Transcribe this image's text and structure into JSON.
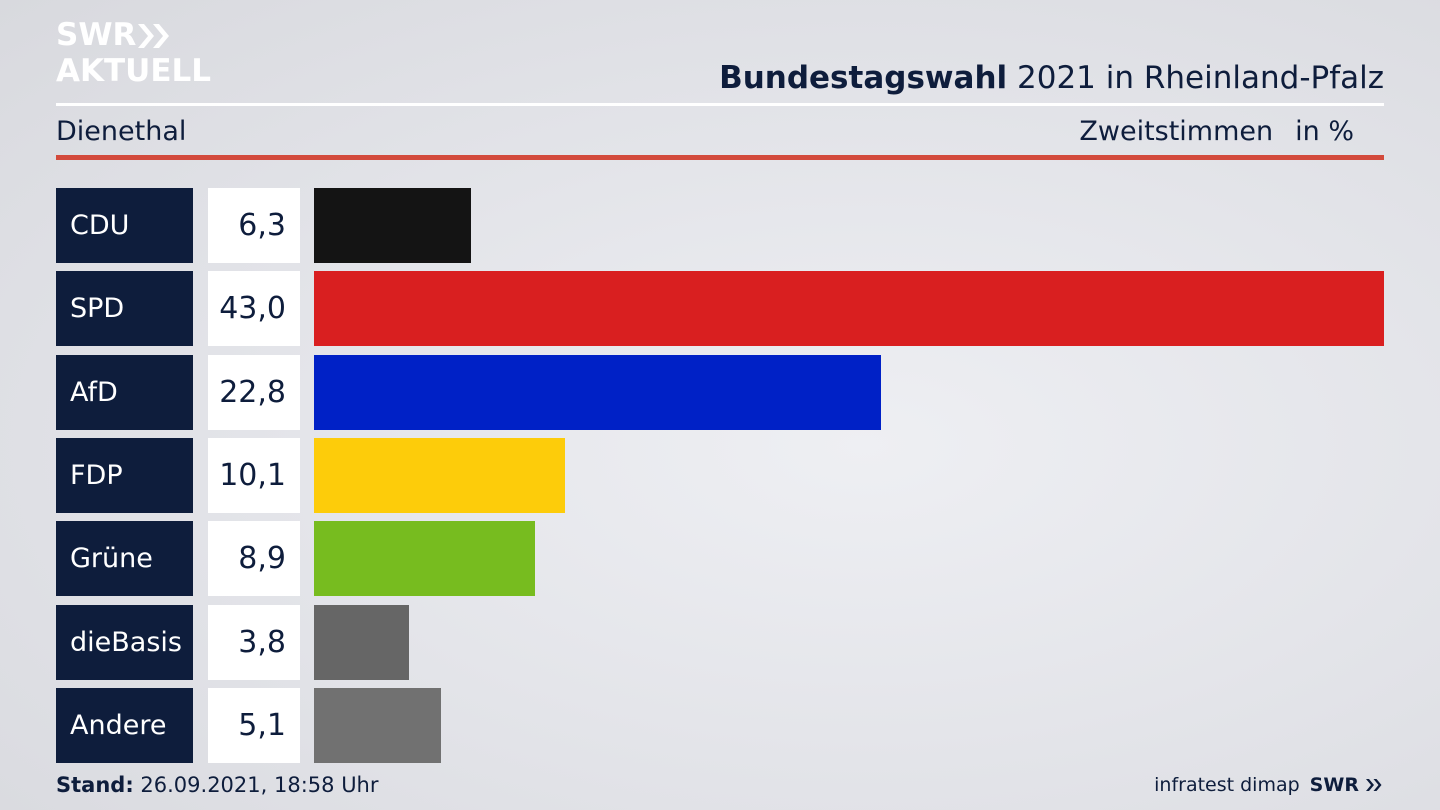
{
  "logo": {
    "line1": "SWR",
    "line2": "AKTUELL"
  },
  "header": {
    "title_bold": "Bundestagswahl",
    "title_rest": " 2021 in Rheinland-Pfalz",
    "region": "Dienethal",
    "measure": "Zweitstimmen",
    "unit": "in %"
  },
  "chart_data": {
    "type": "bar",
    "orientation": "horizontal",
    "categories": [
      "CDU",
      "SPD",
      "AfD",
      "FDP",
      "Grüne",
      "dieBasis",
      "Andere"
    ],
    "values": [
      6.3,
      43.0,
      22.8,
      10.1,
      8.9,
      3.8,
      5.1
    ],
    "value_labels": [
      "6,3",
      "43,0",
      "22,8",
      "10,1",
      "8,9",
      "3,8",
      "5,1"
    ],
    "colors": [
      "#141414",
      "#d91f20",
      "#0021c6",
      "#fdcc0a",
      "#77bc1f",
      "#666666",
      "#717171"
    ],
    "xlim": [
      0,
      43.0
    ],
    "grid": false
  },
  "footer": {
    "stand_label": "Stand:",
    "stand_value": "26.09.2021, 18:58 Uhr",
    "source": "infratest dimap",
    "brand": "SWR"
  }
}
